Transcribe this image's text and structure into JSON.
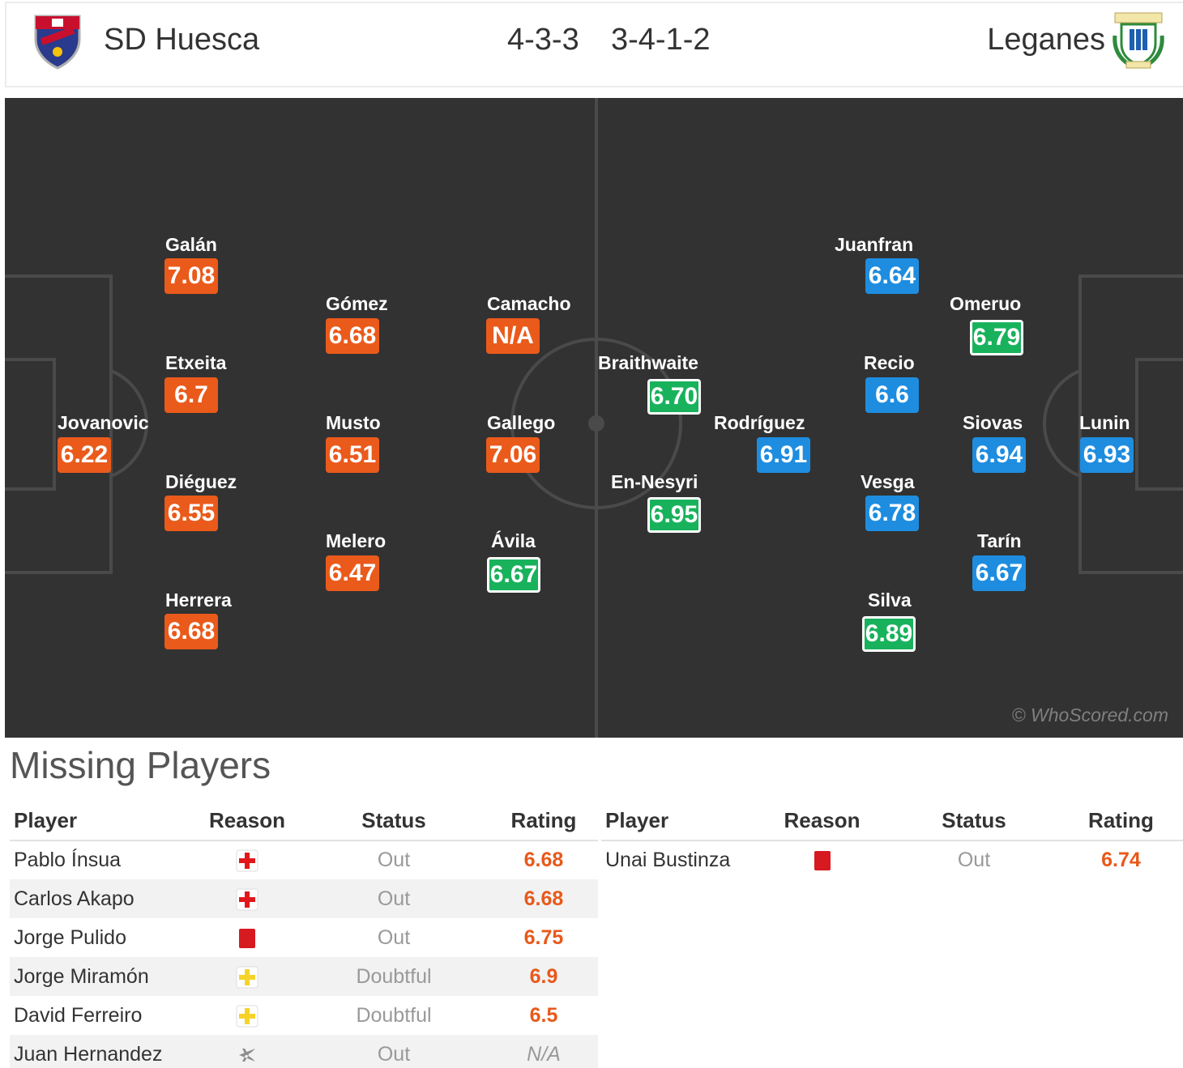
{
  "header": {
    "home_team": "SD Huesca",
    "home_formation": "4-3-3",
    "away_formation": "3-4-1-2",
    "away_team": "Leganes",
    "home_crest_icon": "sd-huesca-crest-icon",
    "away_crest_icon": "leganes-crest-icon"
  },
  "pitch": {
    "watermark": "© WhoScored.com",
    "colors": {
      "pitch": "#323232",
      "lines": "#4a4a4a",
      "home_rating": "#ea5a1b",
      "away_rating": "#1e8de0",
      "top_rating": "#19b25c"
    },
    "home_players": [
      {
        "name": "Jovanovic",
        "rating": "6.22"
      },
      {
        "name": "Galán",
        "rating": "7.08"
      },
      {
        "name": "Etxeita",
        "rating": "6.7"
      },
      {
        "name": "Diéguez",
        "rating": "6.55"
      },
      {
        "name": "Herrera",
        "rating": "6.68"
      },
      {
        "name": "Gómez",
        "rating": "6.68"
      },
      {
        "name": "Musto",
        "rating": "6.51"
      },
      {
        "name": "Melero",
        "rating": "6.47"
      },
      {
        "name": "Camacho",
        "rating": "N/A"
      },
      {
        "name": "Gallego",
        "rating": "7.06"
      },
      {
        "name": "Ávila",
        "rating": "6.67"
      }
    ],
    "away_players": [
      {
        "name": "Braithwaite",
        "rating": "6.70"
      },
      {
        "name": "En-Nesyri",
        "rating": "6.95"
      },
      {
        "name": "Rodríguez",
        "rating": "6.91"
      },
      {
        "name": "Juanfran",
        "rating": "6.64"
      },
      {
        "name": "Recio",
        "rating": "6.6"
      },
      {
        "name": "Vesga",
        "rating": "6.78"
      },
      {
        "name": "Silva",
        "rating": "6.89"
      },
      {
        "name": "Omeruo",
        "rating": "6.79"
      },
      {
        "name": "Siovas",
        "rating": "6.94"
      },
      {
        "name": "Tarín",
        "rating": "6.67"
      },
      {
        "name": "Lunin",
        "rating": "6.93"
      }
    ]
  },
  "missing": {
    "title": "Missing Players",
    "columns": [
      "Player",
      "Reason",
      "Status",
      "Rating"
    ],
    "home": [
      {
        "player": "Pablo Ínsua",
        "reason_icon": "injury-cross-icon",
        "status": "Out",
        "rating": "6.68"
      },
      {
        "player": "Carlos Akapo",
        "reason_icon": "injury-cross-icon",
        "status": "Out",
        "rating": "6.68"
      },
      {
        "player": "Jorge Pulido",
        "reason_icon": "red-card-icon",
        "status": "Out",
        "rating": "6.75"
      },
      {
        "player": "Jorge Miramón",
        "reason_icon": "doubtful-cross-icon",
        "status": "Doubtful",
        "rating": "6.9"
      },
      {
        "player": "David Ferreiro",
        "reason_icon": "doubtful-cross-icon",
        "status": "Doubtful",
        "rating": "6.5"
      },
      {
        "player": "Juan Hernandez",
        "reason_icon": "plane-icon",
        "status": "Out",
        "rating": "N/A"
      }
    ],
    "away": [
      {
        "player": "Unai Bustinza",
        "reason_icon": "red-card-icon",
        "status": "Out",
        "rating": "6.74"
      }
    ]
  }
}
